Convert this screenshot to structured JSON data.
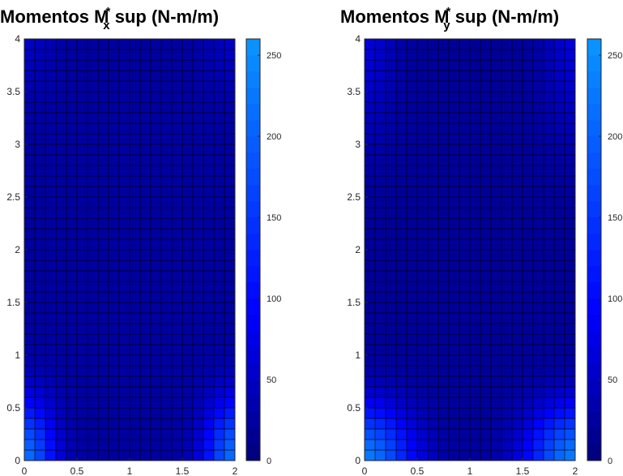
{
  "chart_data": [
    {
      "type": "heatmap",
      "title": "Momentos M",
      "title_subscript": "x",
      "title_superscript": "*",
      "title_suffix": " sup (N-m/m)",
      "xlim": [
        0,
        2
      ],
      "ylim": [
        0,
        4
      ],
      "x_ticks": [
        "0",
        "0.5",
        "1",
        "1.5",
        "2"
      ],
      "y_ticks": [
        "0",
        "0.5",
        "1",
        "1.5",
        "2",
        "2.5",
        "3",
        "3.5",
        "4"
      ],
      "grid_cells": [
        20,
        40
      ],
      "grid": true,
      "colorbar": {
        "range": [
          0,
          260
        ],
        "ticks": [
          "0",
          "50",
          "100",
          "150",
          "200",
          "250"
        ]
      },
      "colors": {
        "low": "#00007a",
        "mid": "#0000ff",
        "high": "#0a96ff",
        "gridline": "#000000"
      },
      "field": {
        "base": 25,
        "hotspots": [
          {
            "x": 0.0,
            "y": 0.0,
            "peak": 190,
            "sx": 0.28,
            "sy": 0.55
          },
          {
            "x": 2.0,
            "y": 0.0,
            "peak": 190,
            "sx": 0.28,
            "sy": 0.55
          },
          {
            "x": 0.0,
            "y": 4.0,
            "peak": 25,
            "sx": 0.3,
            "sy": 0.5
          },
          {
            "x": 2.0,
            "y": 4.0,
            "peak": 25,
            "sx": 0.3,
            "sy": 0.5
          }
        ]
      }
    },
    {
      "type": "heatmap",
      "title": "Momentos M",
      "title_subscript": "y",
      "title_superscript": "*",
      "title_suffix": " sup (N-m/m)",
      "xlim": [
        0,
        2
      ],
      "ylim": [
        0,
        4
      ],
      "x_ticks": [
        "0",
        "0.5",
        "1",
        "1.5",
        "2"
      ],
      "y_ticks": [
        "0",
        "0.5",
        "1",
        "1.5",
        "2",
        "2.5",
        "3",
        "3.5",
        "4"
      ],
      "grid_cells": [
        20,
        40
      ],
      "grid": true,
      "colorbar": {
        "range": [
          0,
          260
        ],
        "ticks": [
          "0",
          "50",
          "100",
          "150",
          "200",
          "250"
        ]
      },
      "colors": {
        "low": "#00007a",
        "mid": "#0000ff",
        "high": "#0a96ff",
        "gridline": "#000000"
      },
      "field": {
        "base": 20,
        "hotspots": [
          {
            "x": 0.0,
            "y": 0.0,
            "peak": 210,
            "sx": 0.45,
            "sy": 0.5
          },
          {
            "x": 2.0,
            "y": 0.0,
            "peak": 210,
            "sx": 0.45,
            "sy": 0.5
          },
          {
            "x": 0.0,
            "y": 4.0,
            "peak": 45,
            "sx": 0.3,
            "sy": 0.9
          },
          {
            "x": 2.0,
            "y": 4.0,
            "peak": 45,
            "sx": 0.3,
            "sy": 0.9
          }
        ]
      }
    }
  ]
}
